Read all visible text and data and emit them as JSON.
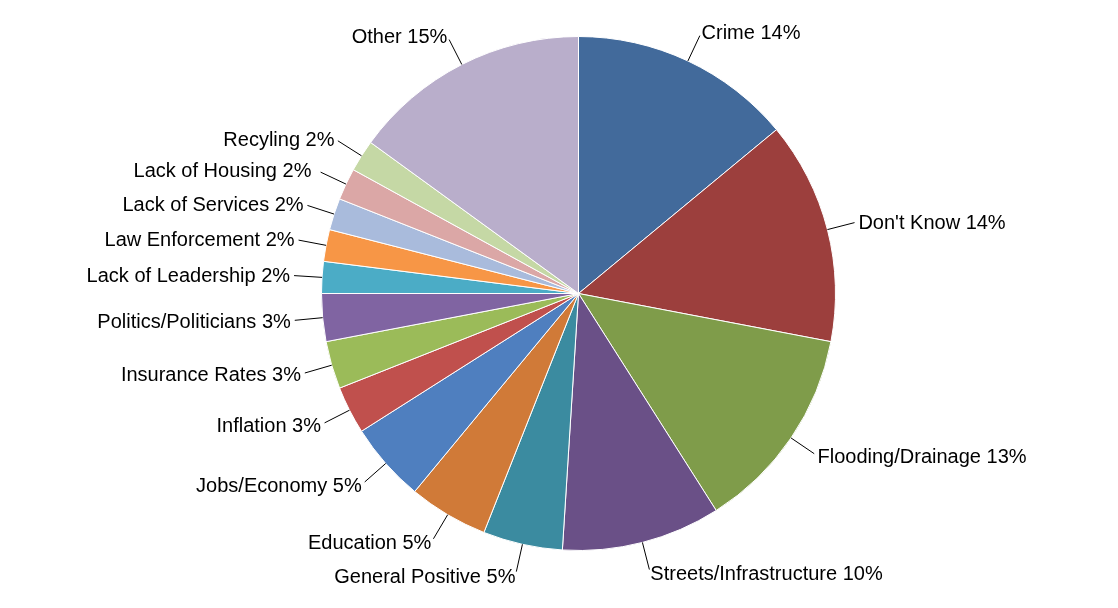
{
  "chart_data": {
    "type": "pie",
    "categories": [
      "Crime",
      "Don't Know",
      "Flooding/Drainage",
      "Streets/Infrastructure",
      "General Positive",
      "Education",
      "Jobs/Economy",
      "Inflation",
      "Insurance Rates",
      "Politics/Politicians",
      "Lack of Leadership",
      "Law Enforcement",
      "Lack of Services",
      "Lack of  Housing",
      "Recyling",
      "Other"
    ],
    "values": [
      14,
      14,
      13,
      10,
      5,
      5,
      5,
      3,
      3,
      3,
      2,
      2,
      2,
      2,
      2,
      15
    ],
    "value_labels": [
      "14%",
      "14%",
      "13%",
      "10%",
      "5%",
      "5%",
      "5%",
      "3%",
      "3%",
      "3%",
      "2%",
      "2%",
      "2%",
      "2%",
      "2%",
      "15%"
    ],
    "colors": [
      "#426a9b",
      "#9c3f3d",
      "#7f9c4a",
      "#6a5087",
      "#3b8ba0",
      "#d07a38",
      "#4f7fbf",
      "#c0504d",
      "#9bbb59",
      "#8064a2",
      "#4bacc6",
      "#f79646",
      "#a9bbdc",
      "#dba7a6",
      "#c5d8a5",
      "#b9aecb"
    ]
  }
}
